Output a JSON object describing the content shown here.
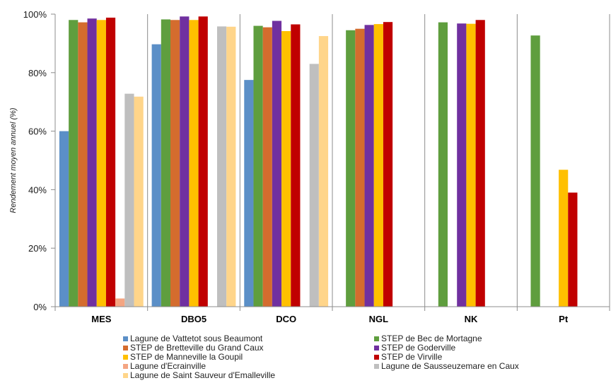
{
  "chart_data": {
    "type": "bar",
    "categories": [
      "MES",
      "DBO5",
      "DCO",
      "NGL",
      "NK",
      "Pt"
    ],
    "ylabel": "Rendement moyen annuel (%)",
    "ylim": [
      0,
      100
    ],
    "yticks": [
      "0%",
      "20%",
      "40%",
      "60%",
      "80%",
      "100%"
    ],
    "grid": false,
    "legend_position": "bottom",
    "series": [
      {
        "name": "Lagune de Vattetot sous Beaumont",
        "color": "#5b8fc7",
        "values": [
          60,
          89.7,
          77.5,
          null,
          null,
          null
        ]
      },
      {
        "name": "STEP de Bec de Mortagne",
        "color": "#5f9e3e",
        "values": [
          98,
          98.2,
          96,
          94.5,
          97.2,
          92.7
        ]
      },
      {
        "name": "STEP de Bretteville du Grand Caux",
        "color": "#d46c2e",
        "values": [
          97.2,
          98,
          95.5,
          95,
          null,
          null
        ]
      },
      {
        "name": "STEP de Goderville",
        "color": "#7030a0",
        "values": [
          98.5,
          99.2,
          97.7,
          96.3,
          96.8,
          null
        ]
      },
      {
        "name": "STEP de Manneville la Goupil",
        "color": "#ffc000",
        "values": [
          98,
          98,
          94.2,
          96.6,
          96.7,
          46.8
        ]
      },
      {
        "name": "STEP de Virville",
        "color": "#c00000",
        "values": [
          98.8,
          99.2,
          96.5,
          97.3,
          98,
          39
        ]
      },
      {
        "name": "Lagune d'Ecrainville",
        "color": "#f4a582",
        "values": [
          2.8,
          null,
          null,
          null,
          null,
          null
        ]
      },
      {
        "name": "Lagune de Sausseuzemare en Caux",
        "color": "#bfbfbf",
        "values": [
          72.8,
          95.8,
          83,
          null,
          null,
          null
        ]
      },
      {
        "name": "Lagune de Saint Sauveur d'Emalleville",
        "color": "#ffd58a",
        "values": [
          71.8,
          95.7,
          92.5,
          null,
          null,
          null
        ]
      }
    ],
    "bar_order_note": ""
  }
}
